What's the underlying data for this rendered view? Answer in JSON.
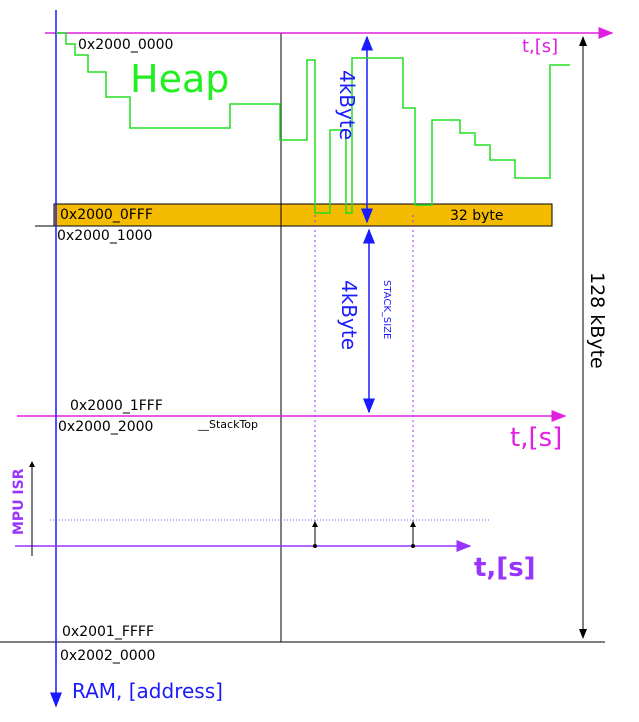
{
  "address_labels": [
    "0x2000_0000",
    "0x2000_0FFF",
    "0x2000_1000",
    "0x2000_1FFF",
    "0x2000_2000",
    "0x2001_FFFF",
    "0x2002_0000"
  ],
  "heap": {
    "label": "Heap",
    "size": "4kByte",
    "guard": "32 byte"
  },
  "stack": {
    "symbol": "__StackTop",
    "size_name": "STACK_SIZE",
    "size": "4kByte"
  },
  "ram": {
    "total": "128 kByte",
    "axis": "RAM, [address]"
  },
  "time_axes": [
    "t,[s]",
    "t,[s]",
    "t,[s]"
  ],
  "mpu": {
    "label": "MPU ISR"
  }
}
